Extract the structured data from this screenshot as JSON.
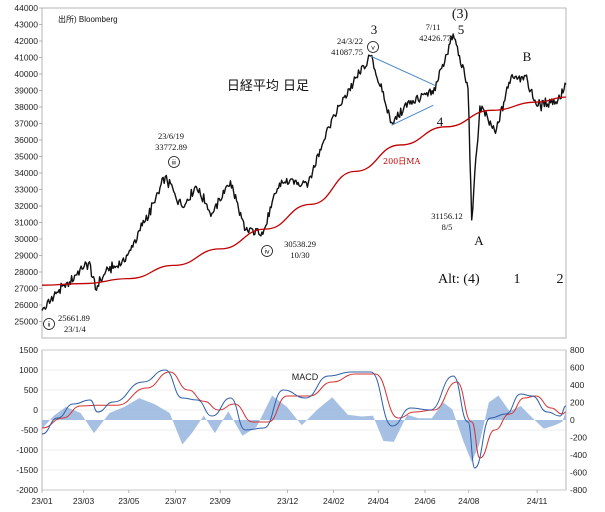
{
  "chart_data": [
    {
      "type": "line",
      "panel": "price",
      "source": "出所) Bloomberg",
      "title": "日経平均 日足",
      "ylim": [
        24000,
        44000
      ],
      "y_ticks": [
        25000,
        26000,
        27000,
        28000,
        29000,
        30000,
        31000,
        32000,
        33000,
        34000,
        35000,
        36000,
        37000,
        38000,
        39000,
        40000,
        41000,
        42000,
        43000,
        44000
      ],
      "price": [
        {
          "x": "2023-01-04",
          "y": 25661.89
        },
        {
          "x": "2023-01-20",
          "y": 26550
        },
        {
          "x": "2023-02-10",
          "y": 27400
        },
        {
          "x": "2023-03-09",
          "y": 28620
        },
        {
          "x": "2023-03-17",
          "y": 26950
        },
        {
          "x": "2023-03-31",
          "y": 28040
        },
        {
          "x": "2023-04-25",
          "y": 28620
        },
        {
          "x": "2023-05-19",
          "y": 30800
        },
        {
          "x": "2023-06-05",
          "y": 32200
        },
        {
          "x": "2023-06-19",
          "y": 33772.89
        },
        {
          "x": "2023-07-12",
          "y": 31940
        },
        {
          "x": "2023-07-31",
          "y": 33170
        },
        {
          "x": "2023-08-21",
          "y": 31560
        },
        {
          "x": "2023-09-15",
          "y": 33530
        },
        {
          "x": "2023-10-04",
          "y": 30530
        },
        {
          "x": "2023-10-30",
          "y": 30538.29
        },
        {
          "x": "2023-11-20",
          "y": 33390
        },
        {
          "x": "2023-12-29",
          "y": 33460
        },
        {
          "x": "2024-01-22",
          "y": 36500
        },
        {
          "x": "2024-02-22",
          "y": 39100
        },
        {
          "x": "2024-03-22",
          "y": 41087.75
        },
        {
          "x": "2024-04-19",
          "y": 37070
        },
        {
          "x": "2024-05-15",
          "y": 38380
        },
        {
          "x": "2024-06-14",
          "y": 38800
        },
        {
          "x": "2024-07-11",
          "y": 42426.77
        },
        {
          "x": "2024-07-31",
          "y": 39100
        },
        {
          "x": "2024-08-05",
          "y": 31156.12
        },
        {
          "x": "2024-08-16",
          "y": 38060
        },
        {
          "x": "2024-09-06",
          "y": 36400
        },
        {
          "x": "2024-09-27",
          "y": 39830
        },
        {
          "x": "2024-10-15",
          "y": 39900
        },
        {
          "x": "2024-11-01",
          "y": 38050
        },
        {
          "x": "2024-12-02",
          "y": 38500
        },
        {
          "x": "2024-12-10",
          "y": 39370
        }
      ],
      "ma200": [
        {
          "x": "2023-01-04",
          "y": 27200
        },
        {
          "x": "2023-03-01",
          "y": 27300
        },
        {
          "x": "2023-05-01",
          "y": 27600
        },
        {
          "x": "2023-07-01",
          "y": 28400
        },
        {
          "x": "2023-09-01",
          "y": 29400
        },
        {
          "x": "2023-11-01",
          "y": 30600
        },
        {
          "x": "2024-01-01",
          "y": 32100
        },
        {
          "x": "2024-03-01",
          "y": 34100
        },
        {
          "x": "2024-05-01",
          "y": 35700
        },
        {
          "x": "2024-07-01",
          "y": 36800
        },
        {
          "x": "2024-09-01",
          "y": 37800
        },
        {
          "x": "2024-11-01",
          "y": 38300
        },
        {
          "x": "2024-12-10",
          "y": 38600
        }
      ],
      "ma_label": "200日MA",
      "channel": [
        [
          {
            "x": "2024-03-22",
            "y": 41080
          },
          {
            "x": "2024-06-17",
            "y": 39300
          }
        ],
        [
          {
            "x": "2024-04-19",
            "y": 36900
          },
          {
            "x": "2024-06-14",
            "y": 38100
          }
        ]
      ],
      "annotations": [
        {
          "x": "2023-01-04",
          "y": 25661.89,
          "label": "25661.89",
          "date": "23/1/4",
          "wave": "ⅱ"
        },
        {
          "x": "2023-06-19",
          "y": 33772.89,
          "label": "33772.89",
          "date": "23/6/19",
          "wave": "ⅲ"
        },
        {
          "x": "2023-10-30",
          "y": 30538.29,
          "label": "30538.29",
          "date": "10/30",
          "wave": "ⅳ"
        },
        {
          "x": "2024-03-22",
          "y": 41087.75,
          "label": "41087.75",
          "date": "24/3/22",
          "wave": "ⅴ",
          "wave_label": "3"
        },
        {
          "x": "2024-07-11",
          "y": 42426.77,
          "label": "42426.77",
          "date": "7/11",
          "wave_label": "5",
          "wave_label_2": "(3)"
        },
        {
          "x": "2024-08-05",
          "y": 31156.12,
          "label": "31156.12",
          "date": "8/5",
          "wave_label": "A"
        }
      ],
      "wave_labels": [
        {
          "x": "2024-05-12",
          "y": 37800,
          "text": "4"
        },
        {
          "x": "2024-10-01",
          "y": 40800,
          "text": "B"
        }
      ],
      "alt_label": {
        "text": "Alt: (4)",
        "wave_1": "1",
        "wave_2": "2"
      }
    },
    {
      "type": "line",
      "panel": "macd",
      "title": "MACD",
      "ylim_left": [
        -2000,
        1500
      ],
      "ylim_right": [
        -800,
        800
      ],
      "y_ticks_left": [
        -2000,
        -1500,
        -1000,
        -500,
        0,
        500,
        1000,
        1500
      ],
      "y_ticks_right": [
        -800,
        -600,
        -400,
        -200,
        0,
        200,
        400,
        600,
        800
      ],
      "x_ticks": [
        "23/01",
        "23/03",
        "23/05",
        "23/07",
        "23/09",
        "23/12",
        "24/02",
        "24/04",
        "24/06",
        "24/08",
        "24/11"
      ],
      "x_tick_dates": [
        "2023-01-04",
        "2023-03-01",
        "2023-05-01",
        "2023-07-03",
        "2023-09-01",
        "2023-12-01",
        "2024-02-01",
        "2024-04-01",
        "2024-06-03",
        "2024-08-01",
        "2024-11-01"
      ],
      "x_end": "2024-12-10",
      "macd": [
        {
          "x": "2023-01-04",
          "y": -600
        },
        {
          "x": "2023-01-25",
          "y": -200
        },
        {
          "x": "2023-02-15",
          "y": 150
        },
        {
          "x": "2023-03-10",
          "y": 250
        },
        {
          "x": "2023-03-20",
          "y": -50
        },
        {
          "x": "2023-04-10",
          "y": 200
        },
        {
          "x": "2023-05-20",
          "y": 700
        },
        {
          "x": "2023-06-19",
          "y": 1000
        },
        {
          "x": "2023-07-12",
          "y": 300
        },
        {
          "x": "2023-08-01",
          "y": 250
        },
        {
          "x": "2023-08-21",
          "y": -150
        },
        {
          "x": "2023-09-15",
          "y": 300
        },
        {
          "x": "2023-10-05",
          "y": -500
        },
        {
          "x": "2023-10-30",
          "y": -450
        },
        {
          "x": "2023-11-25",
          "y": 500
        },
        {
          "x": "2023-12-25",
          "y": 300
        },
        {
          "x": "2024-01-25",
          "y": 850
        },
        {
          "x": "2024-02-25",
          "y": 950
        },
        {
          "x": "2024-03-22",
          "y": 950
        },
        {
          "x": "2024-04-20",
          "y": -400
        },
        {
          "x": "2024-05-15",
          "y": 50
        },
        {
          "x": "2024-06-10",
          "y": 0
        },
        {
          "x": "2024-07-11",
          "y": 850
        },
        {
          "x": "2024-07-31",
          "y": -300
        },
        {
          "x": "2024-08-09",
          "y": -1450
        },
        {
          "x": "2024-08-30",
          "y": -200
        },
        {
          "x": "2024-09-20",
          "y": -100
        },
        {
          "x": "2024-10-10",
          "y": 400
        },
        {
          "x": "2024-10-25",
          "y": 350
        },
        {
          "x": "2024-11-15",
          "y": -50
        },
        {
          "x": "2024-12-02",
          "y": -150
        },
        {
          "x": "2024-12-10",
          "y": 100
        }
      ],
      "signal": [
        {
          "x": "2023-01-04",
          "y": -450
        },
        {
          "x": "2023-02-01",
          "y": -200
        },
        {
          "x": "2023-02-25",
          "y": 100
        },
        {
          "x": "2023-03-20",
          "y": 120
        },
        {
          "x": "2023-04-15",
          "y": 120
        },
        {
          "x": "2023-05-25",
          "y": 550
        },
        {
          "x": "2023-06-25",
          "y": 950
        },
        {
          "x": "2023-07-20",
          "y": 500
        },
        {
          "x": "2023-08-10",
          "y": 220
        },
        {
          "x": "2023-08-30",
          "y": 0
        },
        {
          "x": "2023-09-20",
          "y": 150
        },
        {
          "x": "2023-10-15",
          "y": -300
        },
        {
          "x": "2023-11-05",
          "y": -300
        },
        {
          "x": "2023-11-30",
          "y": 350
        },
        {
          "x": "2023-12-30",
          "y": 350
        },
        {
          "x": "2024-01-30",
          "y": 700
        },
        {
          "x": "2024-03-01",
          "y": 900
        },
        {
          "x": "2024-03-28",
          "y": 900
        },
        {
          "x": "2024-04-28",
          "y": -200
        },
        {
          "x": "2024-05-20",
          "y": -50
        },
        {
          "x": "2024-06-15",
          "y": 0
        },
        {
          "x": "2024-07-16",
          "y": 700
        },
        {
          "x": "2024-08-05",
          "y": -300
        },
        {
          "x": "2024-08-16",
          "y": -1200
        },
        {
          "x": "2024-09-05",
          "y": -500
        },
        {
          "x": "2024-09-25",
          "y": -100
        },
        {
          "x": "2024-10-15",
          "y": 300
        },
        {
          "x": "2024-10-30",
          "y": 350
        },
        {
          "x": "2024-11-20",
          "y": 50
        },
        {
          "x": "2024-12-05",
          "y": -100
        },
        {
          "x": "2024-12-10",
          "y": -50
        }
      ],
      "histogram": [
        {
          "x": "2023-01-04",
          "y": -100
        },
        {
          "x": "2023-01-20",
          "y": 50
        },
        {
          "x": "2023-02-05",
          "y": 150
        },
        {
          "x": "2023-02-25",
          "y": 80
        },
        {
          "x": "2023-03-15",
          "y": -150
        },
        {
          "x": "2023-04-05",
          "y": 80
        },
        {
          "x": "2023-04-25",
          "y": 150
        },
        {
          "x": "2023-05-15",
          "y": 250
        },
        {
          "x": "2023-06-05",
          "y": 180
        },
        {
          "x": "2023-06-25",
          "y": 80
        },
        {
          "x": "2023-07-12",
          "y": -280
        },
        {
          "x": "2023-07-25",
          "y": -150
        },
        {
          "x": "2023-08-10",
          "y": 50
        },
        {
          "x": "2023-08-25",
          "y": -150
        },
        {
          "x": "2023-09-12",
          "y": 100
        },
        {
          "x": "2023-10-01",
          "y": -180
        },
        {
          "x": "2023-10-20",
          "y": -80
        },
        {
          "x": "2023-11-10",
          "y": 280
        },
        {
          "x": "2023-11-30",
          "y": 150
        },
        {
          "x": "2023-12-20",
          "y": -60
        },
        {
          "x": "2024-01-10",
          "y": 120
        },
        {
          "x": "2024-01-30",
          "y": 260
        },
        {
          "x": "2024-02-20",
          "y": 60
        },
        {
          "x": "2024-03-10",
          "y": 40
        },
        {
          "x": "2024-03-25",
          "y": 50
        },
        {
          "x": "2024-04-08",
          "y": -240
        },
        {
          "x": "2024-04-22",
          "y": -250
        },
        {
          "x": "2024-05-10",
          "y": 60
        },
        {
          "x": "2024-05-25",
          "y": 20
        },
        {
          "x": "2024-06-12",
          "y": 20
        },
        {
          "x": "2024-06-28",
          "y": 200
        },
        {
          "x": "2024-07-10",
          "y": 120
        },
        {
          "x": "2024-07-25",
          "y": -250
        },
        {
          "x": "2024-08-05",
          "y": -480
        },
        {
          "x": "2024-08-15",
          "y": -280
        },
        {
          "x": "2024-08-28",
          "y": 200
        },
        {
          "x": "2024-09-10",
          "y": 280
        },
        {
          "x": "2024-09-25",
          "y": 100
        },
        {
          "x": "2024-10-10",
          "y": 160
        },
        {
          "x": "2024-10-25",
          "y": 30
        },
        {
          "x": "2024-11-10",
          "y": -100
        },
        {
          "x": "2024-11-25",
          "y": -60
        },
        {
          "x": "2024-12-05",
          "y": -20
        },
        {
          "x": "2024-12-10",
          "y": 100
        }
      ]
    }
  ],
  "colors": {
    "price": "#111111",
    "ma200": "#c00000",
    "channel": "#4a86c8",
    "macd": "#2f5fa8",
    "signal": "#d33333",
    "histogram": "#9cb9e0",
    "grid": "#d9d9d9",
    "axis": "#888888"
  }
}
